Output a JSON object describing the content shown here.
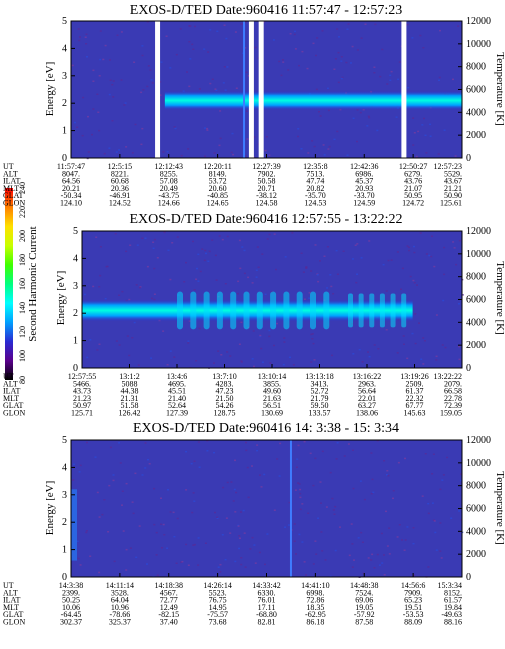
{
  "chart_data": {
    "type": "heatmap",
    "colorbar": {
      "label": "Second Harmonic Current",
      "ticks": [
        "80",
        "100",
        "120",
        "140",
        "160",
        "180",
        "200",
        "220",
        "240"
      ],
      "range": [
        80,
        240
      ],
      "colors": [
        "#000000",
        "#5a008c",
        "#2a2ad2",
        "#00a0ff",
        "#00ffff",
        "#00ff80",
        "#40ff00",
        "#c8ff00",
        "#ffe000",
        "#ff8000",
        "#ff0000"
      ]
    },
    "panels": [
      {
        "title": "EXOS-D/TED  Date:960416  11:57:47 - 12:57:23",
        "ylabel_left": "Energy [eV]",
        "ylabel_right": "Temperature [K]",
        "yticks_left": [
          "0",
          "1",
          "2",
          "3",
          "4",
          "5"
        ],
        "yticks_right": [
          "0",
          "2000",
          "4000",
          "6000",
          "8000",
          "10000",
          "12000"
        ],
        "ylim_left": [
          0,
          5
        ],
        "ylim_right": [
          0,
          12000
        ],
        "band": {
          "center_ev": 2.1,
          "half_width_ev": 0.35,
          "start": 0.24,
          "end": 1.0
        },
        "gaps": [
          0.215,
          0.455,
          0.48,
          0.845
        ],
        "vspikes": [
          0.44
        ],
        "ephem_labels": [
          "UT",
          "ALT",
          "ILAT",
          "MLT",
          "GLAT",
          "GLON"
        ],
        "ephem_cols": [
          [
            "11:57:47",
            "8047.",
            "64.56",
            "20.21",
            "-50.34",
            "124.10"
          ],
          [
            "12:5:15",
            "8221.",
            "60.68",
            "20.36",
            "-46.91",
            "124.52"
          ],
          [
            "12:12:43",
            "8255.",
            "57.08",
            "20.49",
            "-43.75",
            "124.66"
          ],
          [
            "12:20:11",
            "8149.",
            "53.72",
            "20.60",
            "-40.85",
            "124.65"
          ],
          [
            "12:27:39",
            "7902.",
            "50.58",
            "20.71",
            "-38.12",
            "124.58"
          ],
          [
            "12:35:8",
            "7513.",
            "47.74",
            "20.82",
            "-35.70",
            "124.53"
          ],
          [
            "12:42:36",
            "6986.",
            "45.37",
            "20.93",
            "-33.70",
            "124.59"
          ],
          [
            "12:50:27",
            "6279.",
            "43.76",
            "21.07",
            "50.95",
            "124.72"
          ],
          [
            "12:57:23",
            "5529.",
            "43.67",
            "21.21",
            "50.90",
            "125.61"
          ]
        ]
      },
      {
        "title": "EXOS-D/TED  Date:960416  12:57:55 - 13:22:22",
        "ylabel_left": "Energy [eV]",
        "ylabel_right": "Temperature [K]",
        "yticks_left": [
          "0",
          "1",
          "2",
          "3",
          "4",
          "5"
        ],
        "yticks_right": [
          "0",
          "2000",
          "4000",
          "6000",
          "8000",
          "10000",
          "12000"
        ],
        "ylim_left": [
          0,
          5
        ],
        "ylim_right": [
          0,
          12000
        ],
        "band": {
          "center_ev": 2.1,
          "half_width_ev": 0.4,
          "start": 0.0,
          "end": 0.87
        },
        "gaps": [],
        "vspikes": [],
        "ephem_labels": [
          "UT",
          "ALT",
          "ILAT",
          "MLT",
          "GLAT",
          "GLON"
        ],
        "ephem_cols": [
          [
            "12:57:55",
            "5466.",
            "43.73",
            "21.23",
            "50.97",
            "125.71"
          ],
          [
            "13:1:2",
            "5088",
            "44.38",
            "21.31",
            "51.58",
            "126.42"
          ],
          [
            "13:4:6",
            "4695.",
            "45.51",
            "21.40",
            "52.64",
            "127.39"
          ],
          [
            "13:7:10",
            "4283.",
            "47.23",
            "21.50",
            "54.26",
            "128.75"
          ],
          [
            "13:10:14",
            "3855.",
            "49.60",
            "21.63",
            "56.51",
            "130.69"
          ],
          [
            "13:13:18",
            "3413.",
            "52.72",
            "21.79",
            "59.50",
            "133.57"
          ],
          [
            "13:16:22",
            "2963.",
            "56.64",
            "22.01",
            "63.27",
            "138.06"
          ],
          [
            "13:19:26",
            "2509.",
            "61.37",
            "22.32",
            "67.77",
            "145.63"
          ],
          [
            "13:22:22",
            "2079.",
            "66.58",
            "22.78",
            "72.39",
            "159.05"
          ]
        ]
      },
      {
        "title": "EXOS-D/TED  Date:960416  14: 3:38 - 15: 3:34",
        "ylabel_left": "Energy [eV]",
        "ylabel_right": "Temperature [K]",
        "yticks_left": [
          "0",
          "1",
          "2",
          "3",
          "4",
          "5"
        ],
        "yticks_right": [
          "0",
          "2000",
          "4000",
          "6000",
          "8000",
          "10000",
          "12000"
        ],
        "ylim_left": [
          0,
          5
        ],
        "ylim_right": [
          0,
          12000
        ],
        "band": null,
        "gaps": [],
        "vspikes": [
          0.56
        ],
        "ephem_labels": [
          "UT",
          "ALT",
          "ILAT",
          "MLT",
          "GLAT",
          "GLON"
        ],
        "ephem_cols": [
          [
            "14:3:38",
            "2399.",
            "50.25",
            "10.06",
            "-64.45",
            "302.37"
          ],
          [
            "14:11:14",
            "3528.",
            "64.04",
            "10.96",
            "-78.66",
            "325.37"
          ],
          [
            "14:18:38",
            "4567.",
            "72.77",
            "12.49",
            "-82.15",
            "37.40"
          ],
          [
            "14:26:14",
            "5523.",
            "76.75",
            "14.95",
            "-75.57",
            "73.68"
          ],
          [
            "14:33:42",
            "6330.",
            "76.01",
            "17.11",
            "-68.80",
            "82.81"
          ],
          [
            "14:41:10",
            "6998.",
            "72.86",
            "18.35",
            "-62.95",
            "86.18"
          ],
          [
            "14:48:38",
            "7524.",
            "69.06",
            "19.05",
            "-57.92",
            "87.58"
          ],
          [
            "14:56:6",
            "7909.",
            "65.23",
            "19.51",
            "-53.53",
            "88.09"
          ],
          [
            "15:3:34",
            "8152.",
            "61.57",
            "19.84",
            "-49.63",
            "88.16"
          ]
        ]
      }
    ]
  }
}
